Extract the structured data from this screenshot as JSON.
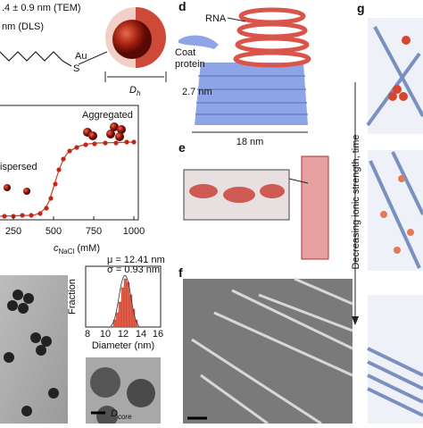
{
  "panel_a": {
    "tem": ".4 ± 0.9 nm (TEM)",
    "dls": "nm (DLS)",
    "core": "Au",
    "size": "D",
    "size_sub": "h"
  },
  "panel_b": {
    "aggregated": "Aggregated",
    "dispersed": "ispersed",
    "x_ticks": [
      "250",
      "500",
      "750",
      "1000"
    ],
    "x_label": "c",
    "x_label_sub": "NaCl",
    "x_label_unit": " (mM)"
  },
  "panel_c": {
    "mu": "μ = 12.41 nm",
    "sigma": "σ = 0.93 nm",
    "y_label": "Fraction",
    "x_label": "Diameter (nm)",
    "x_ticks": [
      "8",
      "10",
      "12",
      "14",
      "16"
    ],
    "scale": "D",
    "scale_sub": "core"
  },
  "panel_d": {
    "letter": "d",
    "rna": "RNA",
    "coat_1": "Coat",
    "coat_2": "protein",
    "height": "2.7 nm",
    "width": "18 nm"
  },
  "panel_e": {
    "letter": "e"
  },
  "panel_f": {
    "letter": "f"
  },
  "panel_g": {
    "letter": "g",
    "arrow": "Decreasing ionic strength, time"
  }
}
